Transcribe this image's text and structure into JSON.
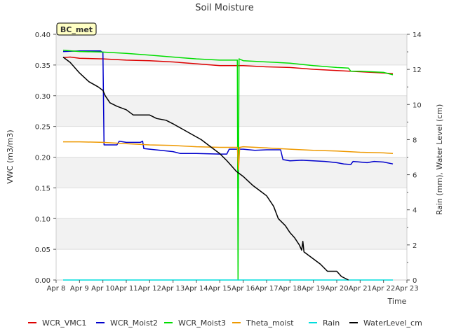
{
  "chart_data": {
    "type": "line",
    "title": "Soil Moisture",
    "badge": "BC_met",
    "xlabel": "Time",
    "ylabel_left": "VWC (m3/m3)",
    "ylabel_right": "Rain (mm), Water Level (cm)",
    "x_range": [
      0,
      15
    ],
    "x_ticks": [
      0,
      1,
      2,
      3,
      4,
      5,
      6,
      7,
      8,
      9,
      10,
      11,
      12,
      13,
      14,
      15
    ],
    "x_tick_labels": [
      "Apr 8",
      "Apr 9",
      "Apr 10",
      "Apr 11",
      "Apr 12",
      "Apr 13",
      "Apr 14",
      "Apr 15",
      "Apr 16",
      "Apr 17",
      "Apr 18",
      "Apr 19",
      "Apr 20",
      "Apr 21",
      "Apr 22",
      "Apr 23"
    ],
    "y_left_range": [
      0,
      0.4
    ],
    "y_left_ticks": [
      0.0,
      0.05,
      0.1,
      0.15,
      0.2,
      0.25,
      0.3,
      0.35,
      0.4
    ],
    "y_left_tick_labels": [
      "0.00",
      "0.05",
      "0.10",
      "0.15",
      "0.20",
      "0.25",
      "0.30",
      "0.35",
      "0.40"
    ],
    "y_right_range": [
      0,
      14
    ],
    "y_right_ticks": [
      0,
      2,
      4,
      6,
      8,
      10,
      12,
      14
    ],
    "y_right_tick_labels": [
      "0",
      "2",
      "4",
      "6",
      "8",
      "10",
      "12",
      "14"
    ],
    "series": [
      {
        "name": "WCR_VMC1",
        "color": "#dd0000",
        "axis": "left",
        "points": [
          [
            0.3,
            0.362
          ],
          [
            0.6,
            0.363
          ],
          [
            1.0,
            0.361
          ],
          [
            2.0,
            0.36
          ],
          [
            3.0,
            0.358
          ],
          [
            4.0,
            0.357
          ],
          [
            5.0,
            0.355
          ],
          [
            6.0,
            0.352
          ],
          [
            7.0,
            0.349
          ],
          [
            8.0,
            0.349
          ],
          [
            8.5,
            0.348
          ],
          [
            9.0,
            0.347
          ],
          [
            10.0,
            0.346
          ],
          [
            11.0,
            0.343
          ],
          [
            12.0,
            0.341
          ],
          [
            13.0,
            0.339
          ],
          [
            14.0,
            0.337
          ],
          [
            14.4,
            0.336
          ]
        ]
      },
      {
        "name": "WCR_Moist2",
        "color": "#0000cc",
        "axis": "left",
        "points": [
          [
            0.3,
            0.372
          ],
          [
            1.0,
            0.373
          ],
          [
            1.9,
            0.373
          ],
          [
            2.0,
            0.37
          ],
          [
            2.05,
            0.22
          ],
          [
            2.6,
            0.22
          ],
          [
            2.7,
            0.226
          ],
          [
            3.0,
            0.224
          ],
          [
            3.6,
            0.224
          ],
          [
            3.7,
            0.226
          ],
          [
            3.75,
            0.214
          ],
          [
            4.0,
            0.213
          ],
          [
            5.0,
            0.209
          ],
          [
            5.3,
            0.206
          ],
          [
            6.0,
            0.206
          ],
          [
            7.0,
            0.205
          ],
          [
            7.3,
            0.205
          ],
          [
            7.4,
            0.213
          ],
          [
            8.0,
            0.213
          ],
          [
            8.5,
            0.211
          ],
          [
            9.0,
            0.212
          ],
          [
            9.6,
            0.212
          ],
          [
            9.7,
            0.196
          ],
          [
            10.0,
            0.194
          ],
          [
            10.5,
            0.195
          ],
          [
            11.0,
            0.194
          ],
          [
            11.5,
            0.193
          ],
          [
            12.0,
            0.191
          ],
          [
            12.3,
            0.189
          ],
          [
            12.6,
            0.188
          ],
          [
            12.7,
            0.193
          ],
          [
            13.0,
            0.192
          ],
          [
            13.3,
            0.191
          ],
          [
            13.6,
            0.193
          ],
          [
            14.0,
            0.192
          ],
          [
            14.4,
            0.189
          ]
        ]
      },
      {
        "name": "WCR_Moist3",
        "color": "#00dd00",
        "axis": "left",
        "points": [
          [
            0.3,
            0.374
          ],
          [
            1.0,
            0.372
          ],
          [
            2.0,
            0.371
          ],
          [
            3.0,
            0.369
          ],
          [
            4.0,
            0.366
          ],
          [
            5.0,
            0.363
          ],
          [
            6.0,
            0.36
          ],
          [
            7.0,
            0.358
          ],
          [
            7.75,
            0.358
          ],
          [
            7.78,
            0.0
          ],
          [
            7.82,
            0.36
          ],
          [
            8.0,
            0.357
          ],
          [
            9.0,
            0.355
          ],
          [
            10.0,
            0.353
          ],
          [
            11.0,
            0.349
          ],
          [
            12.0,
            0.346
          ],
          [
            12.5,
            0.345
          ],
          [
            12.6,
            0.34
          ],
          [
            13.0,
            0.34
          ],
          [
            14.0,
            0.338
          ],
          [
            14.4,
            0.334
          ]
        ]
      },
      {
        "name": "Theta_moist",
        "color": "#ee9900",
        "axis": "left",
        "points": [
          [
            0.3,
            0.225
          ],
          [
            1.0,
            0.225
          ],
          [
            2.0,
            0.224
          ],
          [
            3.0,
            0.222
          ],
          [
            4.0,
            0.22
          ],
          [
            5.0,
            0.219
          ],
          [
            6.0,
            0.217
          ],
          [
            7.0,
            0.216
          ],
          [
            7.75,
            0.216
          ],
          [
            7.8,
            0.18
          ],
          [
            7.85,
            0.216
          ],
          [
            8.0,
            0.217
          ],
          [
            9.0,
            0.215
          ],
          [
            10.0,
            0.213
          ],
          [
            11.0,
            0.211
          ],
          [
            12.0,
            0.21
          ],
          [
            13.0,
            0.208
          ],
          [
            14.0,
            0.207
          ],
          [
            14.4,
            0.206
          ]
        ]
      },
      {
        "name": "Rain",
        "color": "#00dddd",
        "axis": "right",
        "points": [
          [
            0.3,
            0.0
          ],
          [
            14.4,
            0.0
          ]
        ]
      },
      {
        "name": "WaterLevel_cm",
        "color": "#000000",
        "axis": "right",
        "points": [
          [
            0.3,
            12.7
          ],
          [
            0.6,
            12.4
          ],
          [
            1.0,
            11.8
          ],
          [
            1.4,
            11.3
          ],
          [
            1.8,
            11.0
          ],
          [
            2.0,
            10.8
          ],
          [
            2.1,
            10.5
          ],
          [
            2.3,
            10.1
          ],
          [
            2.6,
            9.9
          ],
          [
            3.0,
            9.7
          ],
          [
            3.3,
            9.4
          ],
          [
            3.6,
            9.4
          ],
          [
            4.0,
            9.4
          ],
          [
            4.3,
            9.2
          ],
          [
            4.7,
            9.1
          ],
          [
            5.0,
            8.9
          ],
          [
            5.4,
            8.6
          ],
          [
            5.8,
            8.3
          ],
          [
            6.2,
            8.0
          ],
          [
            6.6,
            7.6
          ],
          [
            7.0,
            7.2
          ],
          [
            7.3,
            6.8
          ],
          [
            7.5,
            6.5
          ],
          [
            7.7,
            6.2
          ],
          [
            8.0,
            5.9
          ],
          [
            8.4,
            5.4
          ],
          [
            8.8,
            5.0
          ],
          [
            9.0,
            4.8
          ],
          [
            9.3,
            4.2
          ],
          [
            9.5,
            3.5
          ],
          [
            9.8,
            3.1
          ],
          [
            10.0,
            2.7
          ],
          [
            10.2,
            2.4
          ],
          [
            10.4,
            2.0
          ],
          [
            10.5,
            1.7
          ],
          [
            10.55,
            2.2
          ],
          [
            10.6,
            1.6
          ],
          [
            11.0,
            1.2
          ],
          [
            11.3,
            0.9
          ],
          [
            11.6,
            0.5
          ],
          [
            11.8,
            0.5
          ],
          [
            12.0,
            0.5
          ],
          [
            12.2,
            0.2
          ],
          [
            12.5,
            0.0
          ]
        ]
      }
    ]
  }
}
